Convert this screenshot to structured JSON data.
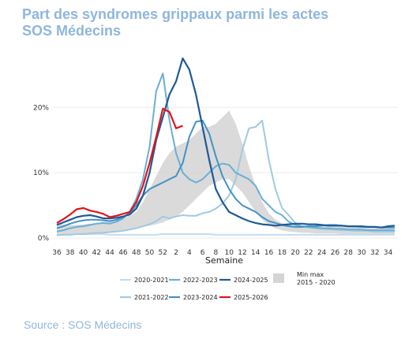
{
  "title": {
    "line1": "Part des syndromes grippaux parmi les actes",
    "line2": "SOS Médecins"
  },
  "source": "Source : SOS Médecins",
  "chart_data": {
    "type": "line",
    "xlabel": "Semaine",
    "ylabel": "",
    "x_ticks": [
      "36",
      "38",
      "40",
      "42",
      "44",
      "46",
      "48",
      "50",
      "52",
      "2",
      "4",
      "6",
      "8",
      "10",
      "12",
      "14",
      "16",
      "18",
      "20",
      "22",
      "24",
      "26",
      "28",
      "30",
      "32",
      "34"
    ],
    "y_ticks": [
      "0%",
      "10%",
      "20%"
    ],
    "ylim": [
      0,
      28
    ],
    "grid": "horizontal",
    "legend": "bottom",
    "weeks": [
      "36",
      "37",
      "38",
      "39",
      "40",
      "41",
      "42",
      "43",
      "44",
      "45",
      "46",
      "47",
      "48",
      "49",
      "50",
      "51",
      "52",
      "1",
      "2",
      "3",
      "4",
      "5",
      "6",
      "7",
      "8",
      "9",
      "10",
      "11",
      "12",
      "13",
      "14",
      "15",
      "16",
      "17",
      "18",
      "19",
      "20",
      "21",
      "22",
      "23",
      "24",
      "25",
      "26",
      "27",
      "28",
      "29",
      "30",
      "31",
      "32",
      "33",
      "34",
      "35"
    ],
    "band": {
      "name": "Min max 2015 - 2020",
      "lower": [
        0.6,
        0.6,
        0.6,
        0.6,
        0.7,
        0.7,
        0.8,
        0.8,
        0.9,
        1.0,
        1.1,
        1.3,
        1.5,
        1.7,
        1.9,
        2.1,
        2.4,
        2.8,
        3.3,
        4.0,
        5.0,
        6.0,
        7.0,
        8.0,
        8.5,
        9.0,
        9.0,
        8.0,
        7.0,
        5.5,
        4.0,
        2.8,
        2.0,
        1.5,
        1.2,
        1.0,
        0.9,
        0.8,
        0.8,
        0.7,
        0.7,
        0.7,
        0.7,
        0.6,
        0.6,
        0.6,
        0.6,
        0.6,
        0.6,
        0.6,
        0.6,
        0.6
      ],
      "upper": [
        2.2,
        2.1,
        2.0,
        2.0,
        2.1,
        2.2,
        2.3,
        2.4,
        2.6,
        2.8,
        3.0,
        3.4,
        4.0,
        5.5,
        7.5,
        9.5,
        11.5,
        13.0,
        14.0,
        14.5,
        15.0,
        16.0,
        17.0,
        17.0,
        17.5,
        18.5,
        19.5,
        17.5,
        14.5,
        11.0,
        8.0,
        5.5,
        3.8,
        2.8,
        2.3,
        2.0,
        1.9,
        1.8,
        1.8,
        1.8,
        1.8,
        1.8,
        1.8,
        1.8,
        1.8,
        1.8,
        1.8,
        1.8,
        1.8,
        1.8,
        1.8,
        1.8
      ]
    },
    "series": [
      {
        "name": "2020-2021",
        "color": "#c6dbef",
        "width": 2.0,
        "values": [
          0.5,
          0.5,
          0.6,
          0.6,
          0.6,
          0.6,
          0.6,
          0.6,
          0.5,
          0.5,
          0.5,
          0.5,
          0.5,
          0.5,
          0.5,
          0.5,
          0.6,
          0.6,
          0.6,
          0.6,
          0.6,
          0.6,
          0.6,
          0.6,
          0.5,
          0.5,
          0.5,
          0.5,
          0.5,
          0.5,
          0.5,
          0.5,
          0.5,
          0.5,
          0.5,
          0.5,
          0.5,
          0.5,
          0.5,
          0.5,
          0.5,
          0.5,
          0.5,
          0.5,
          0.5,
          0.5,
          0.5,
          0.5,
          0.5,
          0.5,
          0.5,
          0.5
        ]
      },
      {
        "name": "2021-2022",
        "color": "#9ecae1",
        "width": 2.0,
        "values": [
          0.4,
          0.5,
          0.5,
          0.6,
          0.6,
          0.7,
          0.8,
          0.8,
          0.9,
          1.0,
          1.1,
          1.3,
          1.5,
          1.8,
          2.1,
          2.6,
          3.3,
          3.0,
          3.3,
          3.5,
          3.4,
          3.4,
          3.8,
          4.0,
          4.5,
          5.3,
          6.5,
          9.0,
          13.5,
          16.8,
          17.0,
          18.0,
          12.0,
          7.5,
          4.6,
          3.5,
          2.3,
          1.8,
          1.6,
          1.5,
          1.4,
          1.3,
          1.3,
          1.2,
          1.2,
          1.1,
          1.1,
          1.1,
          1.0,
          1.0,
          1.0,
          1.0
        ]
      },
      {
        "name": "2022-2023",
        "color": "#6baed6",
        "width": 2.0,
        "values": [
          1.0,
          1.2,
          1.5,
          1.7,
          1.8,
          2.0,
          2.2,
          2.3,
          2.2,
          2.5,
          3.0,
          4.0,
          6.0,
          9.0,
          14.0,
          22.5,
          25.2,
          18.0,
          13.0,
          10.0,
          9.0,
          8.5,
          9.0,
          10.0,
          11.0,
          11.4,
          11.2,
          10.0,
          9.5,
          9.0,
          8.0,
          6.0,
          5.0,
          4.0,
          3.5,
          2.5,
          2.0,
          1.8,
          1.7,
          1.6,
          1.5,
          1.5,
          1.4,
          1.4,
          1.3,
          1.3,
          1.3,
          1.2,
          1.2,
          1.2,
          1.2,
          1.2
        ]
      },
      {
        "name": "2023-2024",
        "color": "#4292c6",
        "width": 2.0,
        "values": [
          1.5,
          1.8,
          2.2,
          2.5,
          2.7,
          2.8,
          2.8,
          2.7,
          2.6,
          2.8,
          3.2,
          3.8,
          5.0,
          6.5,
          7.5,
          8.0,
          8.5,
          9.0,
          9.5,
          11.5,
          15.5,
          17.8,
          18.0,
          16.0,
          12.5,
          9.5,
          7.5,
          6.0,
          5.0,
          4.5,
          4.0,
          3.2,
          2.6,
          2.3,
          2.0,
          1.8,
          1.7,
          1.7,
          1.8,
          1.8,
          1.9,
          2.0,
          2.0,
          1.9,
          1.8,
          1.8,
          1.7,
          1.7,
          1.7,
          1.6,
          1.6,
          1.6
        ]
      },
      {
        "name": "2024-2025",
        "color": "#1f5a96",
        "width": 2.2,
        "values": [
          2.0,
          2.4,
          2.8,
          3.2,
          3.4,
          3.5,
          3.3,
          3.0,
          3.0,
          3.1,
          3.3,
          3.6,
          4.5,
          6.5,
          10.0,
          15.0,
          18.5,
          22.0,
          24.0,
          27.5,
          25.8,
          22.0,
          17.0,
          12.0,
          7.5,
          5.5,
          4.0,
          3.5,
          3.0,
          2.6,
          2.3,
          2.1,
          2.0,
          1.9,
          2.0,
          2.1,
          2.2,
          2.2,
          2.1,
          2.1,
          2.0,
          1.9,
          1.9,
          1.9,
          1.8,
          1.8,
          1.8,
          1.7,
          1.7,
          1.6,
          1.8,
          1.9
        ]
      },
      {
        "name": "2025-2026",
        "color": "#e3141a",
        "width": 2.2,
        "values": [
          2.3,
          2.9,
          3.6,
          4.4,
          4.6,
          4.2,
          4.0,
          3.7,
          3.2,
          3.4,
          3.7,
          4.0,
          5.5,
          8.0,
          11.5,
          15.5,
          19.8,
          19.3,
          16.8,
          17.2,
          null,
          null,
          null,
          null,
          null,
          null,
          null,
          null,
          null,
          null,
          null,
          null,
          null,
          null,
          null,
          null,
          null,
          null,
          null,
          null,
          null,
          null,
          null,
          null,
          null,
          null,
          null,
          null,
          null,
          null,
          null,
          null
        ]
      }
    ]
  }
}
